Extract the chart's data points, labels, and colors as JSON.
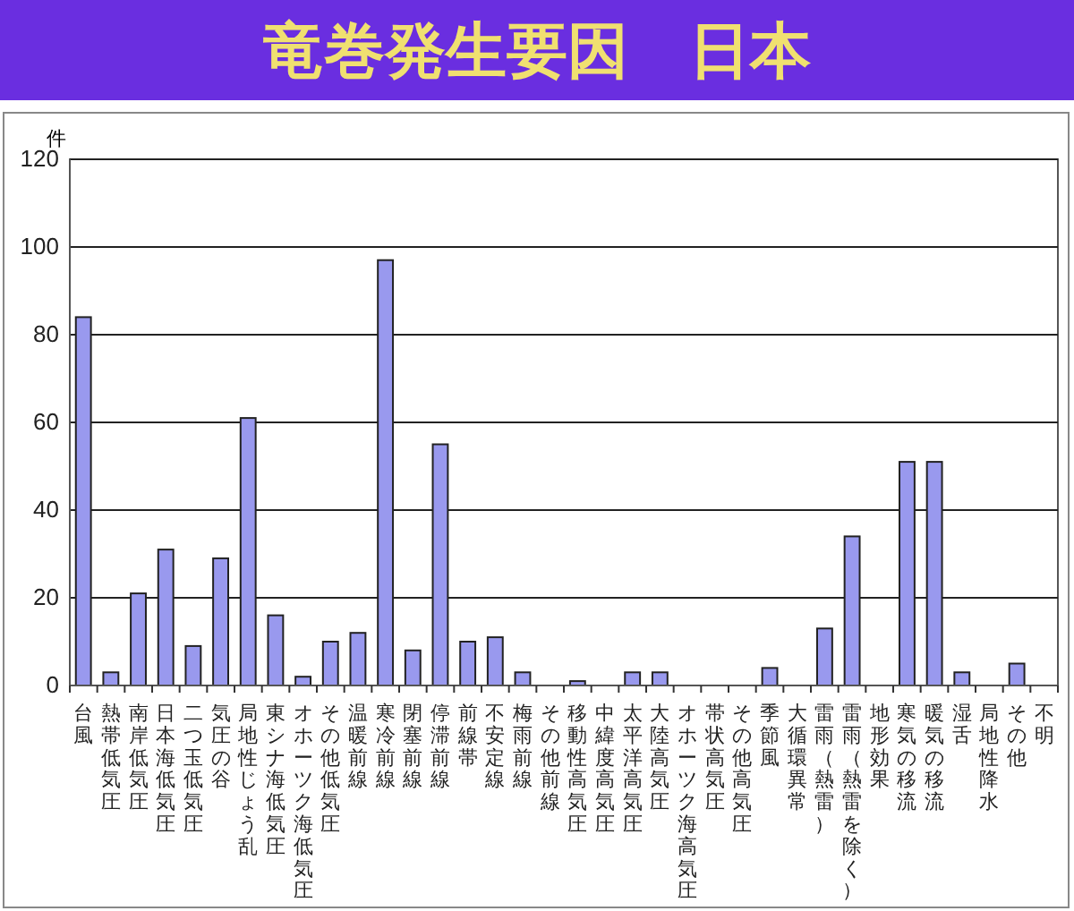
{
  "chart_data": {
    "type": "bar",
    "title": "竜巻発生要因　日本",
    "ylabel": "件",
    "categories": [
      "台風",
      "熱帯低気圧",
      "南岸低気圧",
      "日本海低気圧",
      "二つ玉低気圧",
      "気圧の谷",
      "局地性じょう乱",
      "東シナ海低気圧",
      "オホーツク海低気圧",
      "その他低気圧",
      "温暖前線",
      "寒冷前線",
      "閉塞前線",
      "停滞前線",
      "前線帯",
      "不安定線",
      "梅雨前線",
      "その他前線",
      "移動性高気圧",
      "中緯度高気圧",
      "太平洋高気圧",
      "大陸高気圧",
      "オホーツク海高気圧",
      "帯状高気圧",
      "その他高気圧",
      "季節風",
      "大循環異常",
      "雷雨（熱雷）",
      "雷雨（熱雷を除く）",
      "地形効果",
      "寒気の移流",
      "暖気の移流",
      "湿舌",
      "局地性降水",
      "その他",
      "不明"
    ],
    "values": [
      84,
      3,
      21,
      31,
      9,
      29,
      61,
      16,
      2,
      10,
      12,
      97,
      8,
      55,
      10,
      11,
      3,
      0,
      1,
      0,
      3,
      3,
      0,
      0,
      0,
      4,
      0,
      13,
      34,
      0,
      51,
      51,
      3,
      0,
      5,
      0
    ],
    "color": "#9999ee",
    "ylim": [
      0,
      120
    ],
    "yticks": [
      0,
      20,
      40,
      60,
      80,
      100,
      120
    ],
    "grid": "y"
  }
}
